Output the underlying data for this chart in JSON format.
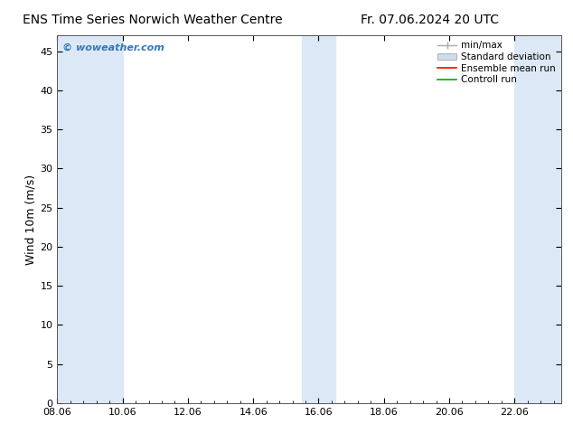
{
  "title_left": "ENS Time Series Norwich Weather Centre",
  "title_right": "Fr. 07.06.2024 20 UTC",
  "ylabel": "Wind 10m (m/s)",
  "xlabel_ticks": [
    "08.06",
    "10.06",
    "12.06",
    "14.06",
    "16.06",
    "18.06",
    "20.06",
    "22.06"
  ],
  "x_values": [
    8.06,
    10.06,
    12.06,
    14.06,
    16.06,
    18.06,
    20.06,
    22.06
  ],
  "xlim": [
    8.06,
    23.5
  ],
  "ylim": [
    0,
    47
  ],
  "yticks": [
    0,
    5,
    10,
    15,
    20,
    25,
    30,
    35,
    40,
    45
  ],
  "bg_color": "#ffffff",
  "plot_bg_color": "#ffffff",
  "shaded_bands": [
    {
      "xmin": 8.06,
      "xmax": 9.06,
      "color": "#dce8f5"
    },
    {
      "xmin": 9.06,
      "xmax": 10.06,
      "color": "#dce8f5"
    },
    {
      "xmin": 15.56,
      "xmax": 16.56,
      "color": "#dce8f5"
    },
    {
      "xmin": 22.06,
      "xmax": 23.5,
      "color": "#dce8f5"
    }
  ],
  "watermark": "© woweather.com",
  "watermark_color": "#3377bb",
  "legend_entries": [
    "min/max",
    "Standard deviation",
    "Ensemble mean run",
    "Controll run"
  ],
  "legend_colors": [
    "#aaaaaa",
    "#ccddef",
    "#ff0000",
    "#00aa00"
  ],
  "title_fontsize": 10,
  "tick_fontsize": 8,
  "ylabel_fontsize": 9,
  "legend_fontsize": 7.5
}
